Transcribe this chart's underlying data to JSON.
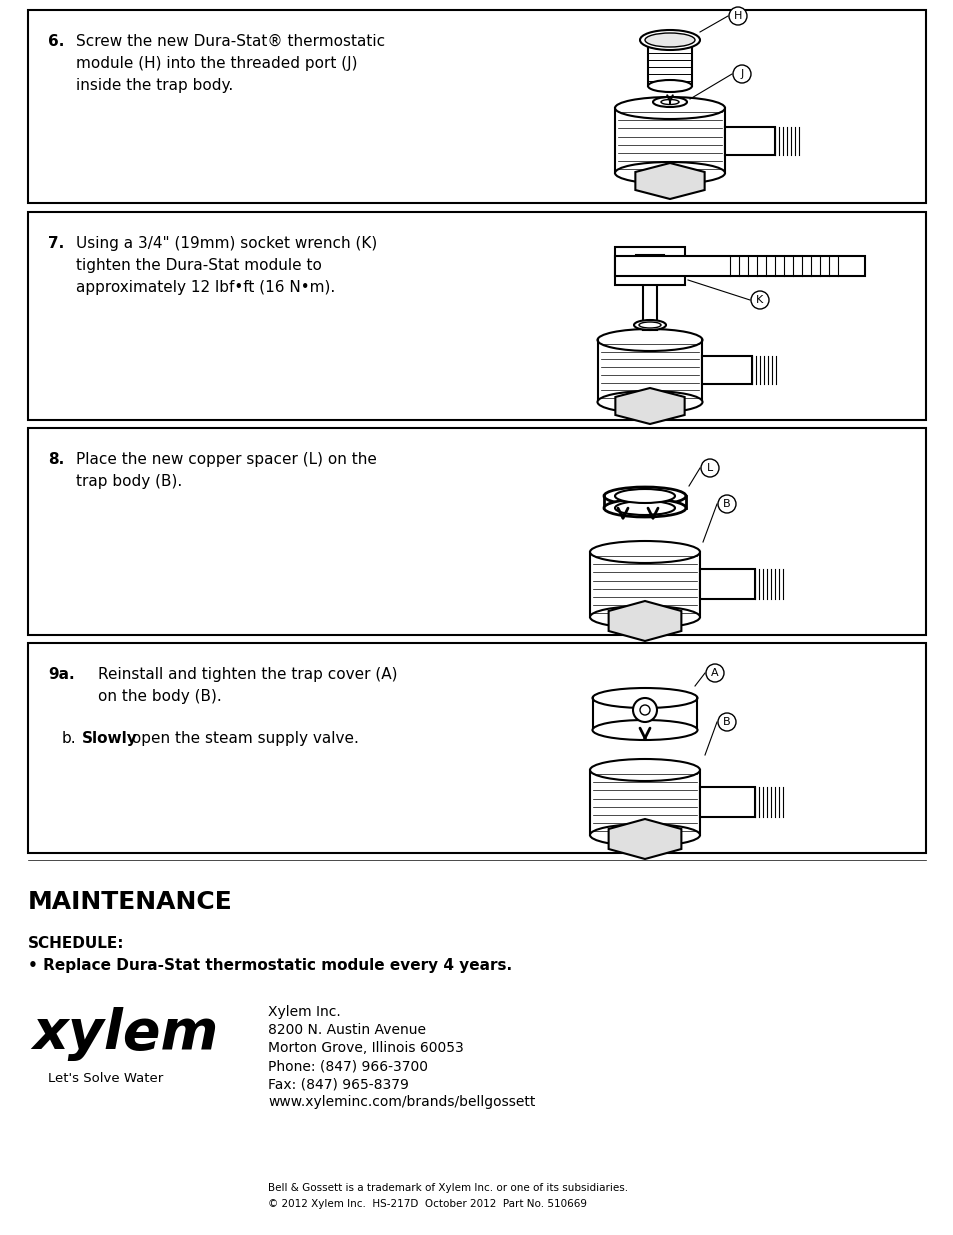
{
  "bg_color": "#ffffff",
  "border_color": "#000000",
  "text_color": "#000000",
  "step6": {
    "number": "6.",
    "text_line1": "Screw the new Dura-Stat® thermostatic",
    "text_line2": "module (H) into the threaded port (J)",
    "text_line3": "inside the trap body."
  },
  "step7": {
    "number": "7.",
    "text_line1": "Using a 3/4\" (19mm) socket wrench (K)",
    "text_line2": "tighten the Dura-Stat module to",
    "text_line3": "approximately 12 lbf•ft (16 N•m)."
  },
  "step8": {
    "number": "8.",
    "text_line1": "Place the new copper spacer (L) on the",
    "text_line2": "trap body (B)."
  },
  "step9a": {
    "number": "9a.",
    "text_line1": "Reinstall and tighten the trap cover (A)",
    "text_line2": "on the body (B)."
  },
  "step9b": {
    "label": "b.",
    "bold_word": "Slowly",
    "text": " open the steam supply valve."
  },
  "maintenance_title": "MAINTENANCE",
  "schedule_label": "SCHEDULE:",
  "schedule_text": "• Replace Dura-Stat thermostatic module every 4 years.",
  "company_name": "xylem",
  "company_tagline": "Let's Solve Water",
  "company_info": [
    "Xylem Inc.",
    "8200 N. Austin Avenue",
    "Morton Grove, Illinois 60053",
    "Phone: (847) 966-3700",
    "Fax: (847) 965-8379",
    "www.xyleminc.com/brands/bellgossett"
  ],
  "footnote1": "Bell & Gossett is a trademark of Xylem Inc. or one of its subsidiaries.",
  "footnote2": "© 2012 Xylem Inc.  HS-217D  October 2012  Part No. 510669"
}
